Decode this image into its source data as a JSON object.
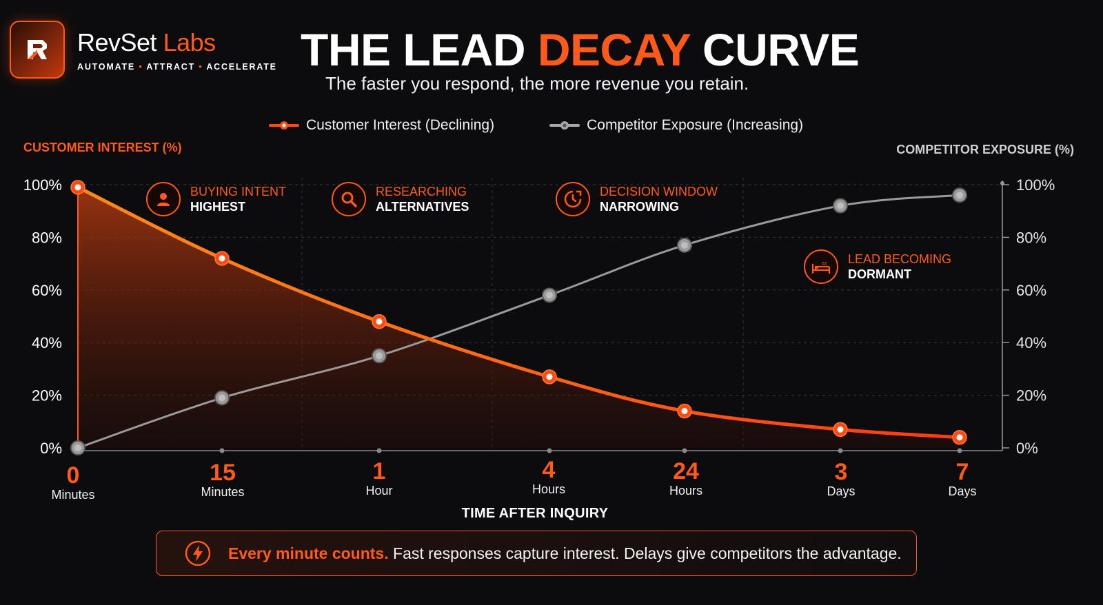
{
  "brand": {
    "name_main": "RevSet",
    "name_accent": " Labs",
    "tag": [
      "AUTOMATE",
      "ATTRACT",
      "ACCELERATE"
    ],
    "tag_dot": "•"
  },
  "header": {
    "title_pre": "THE LEAD ",
    "title_accent": "DECAY",
    "title_post": " CURVE",
    "subtitle": "The faster you respond, the more revenue you retain."
  },
  "legend": [
    {
      "label": "Customer Interest (Declining)",
      "color": "#ff4a12"
    },
    {
      "label": "Competitor Exposure (Increasing)",
      "color": "#a8a8a8"
    }
  ],
  "annotations": [
    {
      "line1": "BUYING INTENT",
      "line2": "HIGHEST",
      "icon": "person-icon"
    },
    {
      "line1": "RESEARCHING",
      "line2": "ALTERNATIVES",
      "icon": "magnifier-icon"
    },
    {
      "line1": "DECISION WINDOW",
      "line2": "NARROWING",
      "icon": "clock-icon"
    },
    {
      "line1": "LEAD BECOMING",
      "line2": "DORMANT",
      "icon": "sleep-bed-icon"
    }
  ],
  "callout": {
    "strong": "Every minute counts.",
    "rest": " Fast responses capture interest. Delays give competitors the advantage.",
    "icon": "lightning-icon"
  },
  "chart_data": {
    "type": "line",
    "ylabel": "CUSTOMER INTEREST (%)",
    "y2label": "COMPETITOR EXPOSURE (%)",
    "xlabel": "TIME AFTER INQUIRY",
    "categories": [
      {
        "num": "0",
        "unit": "Minutes"
      },
      {
        "num": "15",
        "unit": "Minutes"
      },
      {
        "num": "1",
        "unit": "Hour"
      },
      {
        "num": "4",
        "unit": "Hours"
      },
      {
        "num": "24",
        "unit": "Hours"
      },
      {
        "num": "3",
        "unit": "Days"
      },
      {
        "num": "7",
        "unit": "Days"
      }
    ],
    "yticks": [
      "0%",
      "20%",
      "40%",
      "60%",
      "80%",
      "100%"
    ],
    "ylim": [
      0,
      100
    ],
    "grid": true,
    "series": [
      {
        "name": "Customer Interest (Declining)",
        "axis": "left",
        "color": "#ff4a12",
        "values": [
          99,
          72,
          48,
          27,
          14,
          7,
          4
        ]
      },
      {
        "name": "Competitor Exposure (Increasing)",
        "axis": "right",
        "color": "#a8a8a8",
        "values": [
          0,
          19,
          35,
          58,
          77,
          92,
          96
        ]
      }
    ],
    "colors": {
      "accent": "#ff5a1a",
      "grid": "#3a3a3a",
      "axis_left": "#ff5a1a",
      "axis_right": "#9a9a9a"
    }
  }
}
